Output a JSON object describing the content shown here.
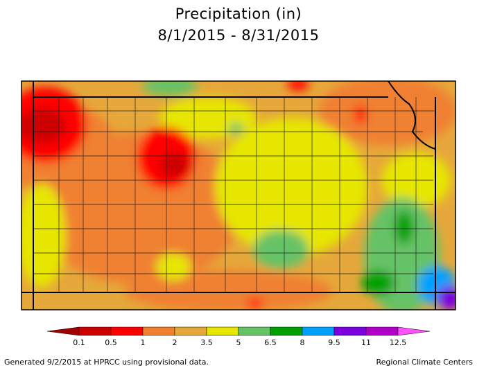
{
  "header": {
    "title": "Precipitation (in)",
    "subtitle": "8/1/2015 - 8/31/2015"
  },
  "legend": {
    "ticks": [
      "0.1",
      "0.5",
      "1",
      "2",
      "3.5",
      "5",
      "6.5",
      "8",
      "9.5",
      "11",
      "12.5"
    ],
    "colors": [
      "#a00000",
      "#cc0000",
      "#ff0000",
      "#f08030",
      "#e6a83a",
      "#e6e600",
      "#66c266",
      "#00a000",
      "#00a0ff",
      "#7a00e0",
      "#b000c8",
      "#ff50ff"
    ]
  },
  "footer": {
    "left": "Generated 9/2/2015 at HPRCC using provisional data.",
    "right": "Regional Climate Centers"
  }
}
